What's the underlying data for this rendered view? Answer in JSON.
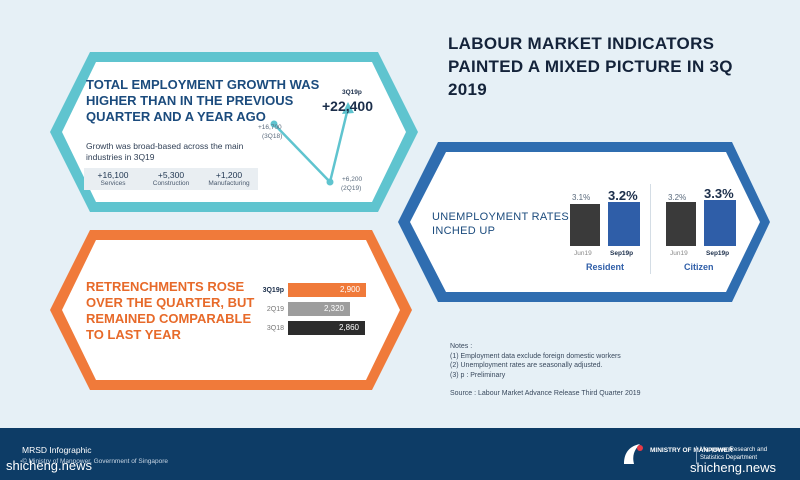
{
  "title": "LABOUR MARKET INDICATORS PAINTED A MIXED PICTURE IN 3Q 2019",
  "watermark": "",
  "employment": {
    "heading": "TOTAL EMPLOYMENT GROWTH WAS HIGHER THAN IN THE PREVIOUS QUARTER AND A YEAR AGO",
    "subtext": "Growth was broad-based across the main industries in 3Q19",
    "stats": [
      {
        "value": "+16,100",
        "label": "Services"
      },
      {
        "value": "+5,300",
        "label": "Construction"
      },
      {
        "value": "+1,200",
        "label": "Manufacturing"
      }
    ],
    "points": [
      {
        "quarter": "(3Q18)",
        "value": 16700,
        "label": "+16,700"
      },
      {
        "quarter": "(2Q19)",
        "value": 6200,
        "label": "+6,200"
      },
      {
        "quarter": "3Q19p",
        "value": 22400,
        "label": "+22,400"
      }
    ]
  },
  "unemployment": {
    "heading": "UNEMPLOYMENT RATES INCHED UP",
    "groups": [
      {
        "name": "Resident",
        "bars": [
          {
            "label": "Jun19",
            "value": "3.1%",
            "color": "#3a3a3a"
          },
          {
            "label": "Sep19p",
            "value": "3.2%",
            "color": "#2f5ea8"
          }
        ]
      },
      {
        "name": "Citizen",
        "bars": [
          {
            "label": "Jun19",
            "value": "3.2%",
            "color": "#3a3a3a"
          },
          {
            "label": "Sep19p",
            "value": "3.3%",
            "color": "#2f5ea8"
          }
        ]
      }
    ]
  },
  "retrenchments": {
    "heading": "RETRENCHMENTS ROSE OVER THE QUARTER, BUT REMAINED COMPARABLE TO LAST YEAR",
    "rows": [
      {
        "label": "3Q19p",
        "value": 2900,
        "display": "2,900",
        "color": "#f07a3a"
      },
      {
        "label": "2Q19",
        "value": 2320,
        "display": "2,320",
        "color": "#9d9d9d"
      },
      {
        "label": "3Q18",
        "value": 2860,
        "display": "2,860",
        "color": "#2c2c2c"
      }
    ]
  },
  "notes": {
    "heading": "Notes :",
    "items": [
      "(1) Employment data exclude foreign domestic workers",
      "(2) Unemployment rates are seasonally adjusted.",
      "(3) p : Preliminary"
    ],
    "source": "Source : Labour Market Advance Release Third Quarter 2019"
  },
  "footer": {
    "left_title": "MRSD Infographic",
    "left_sub": "© Ministry of Manpower, Government of Singapore",
    "site": "shicheng.news",
    "ministry": "MINISTRY OF MANPOWER",
    "dept": "Manpower Research and Statistics Department",
    "site2": "shicheng.news"
  },
  "colors": {
    "blue": "#2f6db0",
    "teal": "#5fc4cf",
    "orange": "#f07a3a",
    "navy": "#0d3c66"
  }
}
